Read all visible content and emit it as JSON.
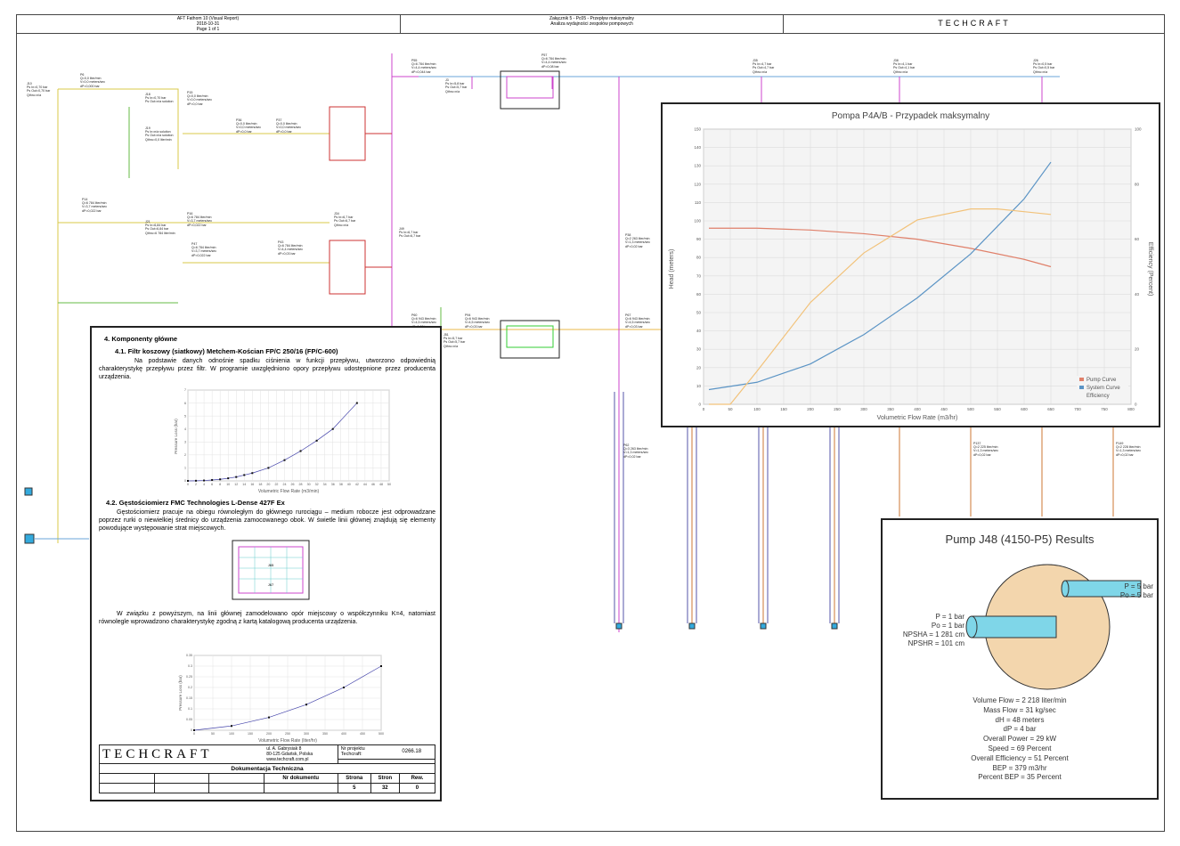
{
  "header": {
    "left_line1": "AFT Fathom 10 (Visual Report)",
    "left_line2": "2018-10-31",
    "left_line3": "Page 1 of 1",
    "mid_line1": "Załącznik 5 - Pc05 - Przepływ maksymalny",
    "mid_line2": "Analiza wydajności zespołów pompowych",
    "brand": "TECHCRAFT"
  },
  "model_labels": [
    {
      "id": "J10",
      "text": "J10\nPs In=0,70 bar\nPs Out=0,70 bar\nQthru=n/a"
    },
    {
      "id": "P6",
      "text": "P6\nQ=0,0 liter/min\nV=0,0 meters/sec\ndP=0,000 bar"
    },
    {
      "id": "J18",
      "text": "J18\nPs In=0,70 bar\nPs Out=n/a solution"
    },
    {
      "id": "P15",
      "text": "P15\nQ=0,0 liter/min\nV=0,0 meters/sec\ndP=0,0 bar"
    },
    {
      "id": "P36",
      "text": "P36\nQ=0,0 liter/min\nV=0,0 meters/sec\ndP=0,0 bar"
    },
    {
      "id": "P37",
      "text": "P37\nQ=0,0 liter/min\nV=0,0 meters/sec\ndP=0,0 bar"
    },
    {
      "id": "J19",
      "text": "J19\nPs In=n/a solution\nPs Out=n/a solution\nQthru=0,0 liter/min"
    },
    {
      "id": "P55",
      "text": "P55\nQ=6 784 liter/min\nV=4,4 meters/sec\ndP=0,044 bar"
    },
    {
      "id": "P57",
      "text": "P57\nQ=6 784 liter/min\nV=4,4 meters/sec\ndP=0,08 bar"
    },
    {
      "id": "J3",
      "text": "J3\nPs In=5,8 bar\nPs Out=5,7 bar\nQthru=n/a"
    },
    {
      "id": "P14",
      "text": "P14\nQ=6 784 liter/min\nV=3,7 meters/sec\ndP=0,022 bar"
    },
    {
      "id": "J21",
      "text": "J21\nPs In=6,84 bar\nPs Out=6,84 bar\nQthru=6 784 liter/min"
    },
    {
      "id": "P16",
      "text": "P16\nQ=6 784 liter/min\nV=3,7 meters/sec\ndP=0,022 bar"
    },
    {
      "id": "P47",
      "text": "P47\nQ=6 784 liter/min\nV=3,7 meters/sec\ndP=0,022 bar"
    },
    {
      "id": "J34",
      "text": "J34\nPs In=6,7 bar\nPs Out=6,7 bar\nQthru=n/a"
    },
    {
      "id": "P43",
      "text": "P43\nQ=6 784 liter/min\nV=4,4 meters/sec\ndP=0,03 bar"
    },
    {
      "id": "J49",
      "text": "J49\nPs In=6,7 bar\nPs Out=6,7 bar"
    },
    {
      "id": "P60",
      "text": "P60\nQ=6 943 liter/min\nV=4,5 meters/sec\ndP=0,03 bar"
    },
    {
      "id": "J51",
      "text": "J51\nPs In=5,7 bar\nPs Out=5,7 bar\nQthru=n/a"
    },
    {
      "id": "P94",
      "text": "P94\nQ=6 943 liter/min\nV=4,5 meters/sec\ndP=0,03 bar"
    },
    {
      "id": "P38",
      "text": "P38\nQ=2 263 liter/min\nV=1,3 meters/sec\ndP=0,02 bar"
    },
    {
      "id": "P67",
      "text": "P67\nQ=6 943 liter/min\nV=4,5 meters/sec\ndP=0,03 bar"
    },
    {
      "id": "P62",
      "text": "P62\nQ=3 263 liter/min\nV=1,3 meters/sec\ndP=0,02 bar"
    },
    {
      "id": "P137",
      "text": "P137\nQ=2 225 liter/min\nV=1,3 meters/sec\ndP=0,02 bar"
    },
    {
      "id": "P149",
      "text": "P149\nQ=2 228 liter/min\nV=1,3 meters/sec\ndP=0,02 bar"
    },
    {
      "id": "J35",
      "text": "J35\nPs In=4,7 bar\nPs Out=4,7 bar\nQthru=n/a"
    },
    {
      "id": "J38",
      "text": "J38\nPs In=4,1 bar\nPs Out=4,1 bar\nQthru=n/a"
    },
    {
      "id": "J26",
      "text": "J26\nPs In=0,5 bar\nPs Out=0,5 bar\nQthru=n/a"
    }
  ],
  "pump_curve": {
    "title": "Pompa P4A/B - Przypadek maksymalny",
    "xlabel": "Volumetric Flow Rate (m3/hr)",
    "ylabel": "Head (meters)",
    "y2label": "Efficiency (Percent)",
    "legend": [
      "Pump Curve",
      "System Curve",
      "Efficiency"
    ]
  },
  "pump_results": {
    "title": "Pump J48 (4150-P5) Results",
    "outlet_p": "P = 5 bar",
    "outlet_po": "Po = 5 bar",
    "inlet_p": "P = 1 bar",
    "inlet_po": "Po = 1 bar",
    "npsha": "NPSHA = 1 281 cm",
    "npshr": "NPSHR = 101 cm",
    "volume_flow": "Volume Flow = 2 218 liter/min",
    "mass_flow": "Mass Flow = 31 kg/sec",
    "dh": "dH = 48 meters",
    "dp": "dP = 4 bar",
    "overall_power": "Overall Power = 29 kW",
    "speed": "Speed = 69 Percent",
    "overall_eff": "Overall Efficiency = 51 Percent",
    "bep": "BEP = 379 m3/hr",
    "percent_bep": "Percent BEP = 35 Percent"
  },
  "doc": {
    "section": "4.   Komponenty główne",
    "sub1": "4.1. Filtr koszowy (siatkowy) Metchem-Kościan FP/C 250/16 (FP/C-600)",
    "para1": "Na podstawie danych odnośnie spadku ciśnienia w funkcji przepływu, utworzono odpowiednią charakterystykę przepływu przez filtr. W programie uwzględniono opory przepływu udostępnione przez producenta urządzenia.",
    "chart1_xlabel": "Volumetric Flow Rate (m3/min)",
    "chart1_ylabel": "Pressure Loss (bar)",
    "sub2": "4.2. Gęstościomierz FMC Technologies L-Dense 427F Ex",
    "para2": "Gęstościomierz pracuje na obiegu równoległym do głównego rurociągu – medium robocze jest odprowadzane poprzez rurki o niewielkiej średnicy do urządzenia zamocowanego obok. W świetle linii głównej znajdują się elementy powodujące występowanie strat miejscowych.",
    "para3": "W związku z powyższym, na linii głównej zamodelowano opór miejscowy o współczynniku K=4, natomiast równolegle wprowadzono charakterystykę zgodną z kartą katalogową producenta urządzenia.",
    "chart2_xlabel": "Volumetric Flow Rate (liter/hr)",
    "chart2_ylabel": "Pressure Loss (bar)",
    "inset_j65": "J65",
    "inset_j67": "J67",
    "tb_brand": "TECHCRAFT",
    "tb_addr1": "ul. A. Gabrysiak 8",
    "tb_addr2": "80-125 Gdańsk, Polska",
    "tb_addr3": "www.techcraft.com.pl",
    "tb_proj_label1": "Nr projektu",
    "tb_proj_label2": "Techcraft:",
    "tb_proj_value": "0266.18",
    "tb_doc_title": "Dokumentacja Techniczna",
    "tb_nr_dok": "Nr dokumentu",
    "tb_strona": "Strona",
    "tb_stron": "Stron",
    "tb_rew": "Rew.",
    "tb_strona_v": "5",
    "tb_stron_v": "32",
    "tb_rew_v": "0"
  },
  "chart_data": [
    {
      "type": "line",
      "name": "pump-curve",
      "title": "Pompa P4A/B - Przypadek maksymalny",
      "xlabel": "Volumetric Flow Rate (m3/hr)",
      "ylabel": "Head (meters)",
      "y2label": "Efficiency (Percent)",
      "xlim": [
        0,
        800
      ],
      "ylim": [
        0,
        150
      ],
      "y2lim": [
        0,
        100
      ],
      "xticks": [
        0,
        50,
        100,
        150,
        200,
        250,
        300,
        350,
        400,
        450,
        500,
        550,
        600,
        650,
        700,
        750,
        800
      ],
      "yticks": [
        0,
        10,
        20,
        30,
        40,
        50,
        60,
        70,
        80,
        90,
        100,
        110,
        120,
        130,
        140,
        150
      ],
      "y2ticks": [
        0,
        20,
        40,
        60,
        80,
        100
      ],
      "grid": true,
      "legend_position": "bottom-right",
      "series": [
        {
          "name": "Pump Curve",
          "color": "#e0806a",
          "axis": "y",
          "x": [
            10,
            100,
            200,
            300,
            400,
            500,
            600,
            650
          ],
          "y": [
            96,
            96,
            95,
            93,
            90,
            85,
            79,
            75
          ]
        },
        {
          "name": "System Curve",
          "color": "#5b94c5",
          "axis": "y",
          "x": [
            10,
            100,
            200,
            300,
            400,
            500,
            600,
            650
          ],
          "y": [
            8,
            12,
            22,
            38,
            58,
            82,
            112,
            132
          ]
        },
        {
          "name": "Efficiency",
          "color": "#f2c27a",
          "axis": "y2",
          "x": [
            10,
            50,
            100,
            200,
            300,
            400,
            500,
            550,
            600,
            650
          ],
          "y": [
            -23,
            -5,
            12,
            37,
            55,
            67,
            71,
            71,
            70,
            69
          ]
        }
      ]
    },
    {
      "type": "scatter",
      "name": "filter-curve",
      "xlabel": "Volumetric Flow Rate (m3/min)",
      "ylabel": "Pressure Loss (bar)",
      "xlim": [
        0,
        50
      ],
      "ylim": [
        0,
        7
      ],
      "xticks": [
        0,
        2,
        4,
        6,
        8,
        10,
        12,
        14,
        16,
        18,
        20,
        22,
        24,
        26,
        28,
        30,
        32,
        34,
        36,
        38,
        40,
        42,
        44,
        46,
        48,
        50
      ],
      "yticks": [
        0,
        1,
        2,
        3,
        4,
        5,
        6,
        7
      ],
      "x": [
        0,
        2,
        4,
        6,
        8,
        10,
        12,
        14,
        16,
        20,
        24,
        28,
        32,
        36,
        42
      ],
      "y": [
        0,
        0.01,
        0.03,
        0.07,
        0.12,
        0.2,
        0.3,
        0.45,
        0.6,
        1.0,
        1.6,
        2.3,
        3.1,
        4.0,
        6.0
      ]
    },
    {
      "type": "scatter",
      "name": "density-meter-curve",
      "xlabel": "Volumetric Flow Rate (liter/hr)",
      "ylabel": "Pressure Loss (bar)",
      "xlim": [
        0,
        500
      ],
      "ylim": [
        0,
        0.35
      ],
      "xticks": [
        0,
        50,
        100,
        150,
        200,
        250,
        300,
        350,
        400,
        450,
        500
      ],
      "yticks": [
        0,
        0.05,
        0.1,
        0.15,
        0.2,
        0.25,
        0.3,
        0.35
      ],
      "x": [
        0,
        100,
        200,
        300,
        400,
        500
      ],
      "y": [
        0,
        0.02,
        0.06,
        0.12,
        0.2,
        0.3
      ]
    }
  ]
}
